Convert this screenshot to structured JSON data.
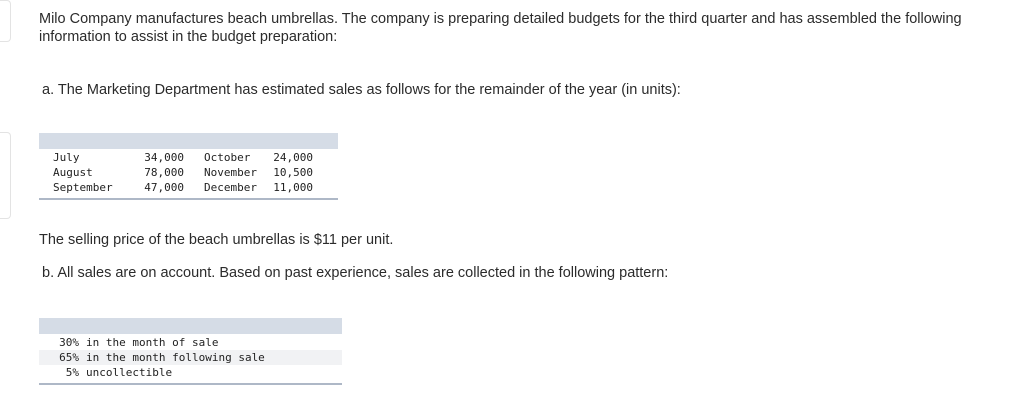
{
  "intro": "Milo Company manufactures beach umbrellas. The company is preparing detailed budgets for the third quarter and has assembled the following information to assist in the budget preparation:",
  "part_a": "a. The Marketing Department has estimated sales as follows for the remainder of the year (in units):",
  "sales_table": {
    "rows": [
      {
        "month1": "July",
        "value1": "34,000",
        "month2": "October",
        "value2": "24,000"
      },
      {
        "month1": "August",
        "value1": "78,000",
        "month2": "November",
        "value2": "10,500"
      },
      {
        "month1": "September",
        "value1": "47,000",
        "month2": "December",
        "value2": "11,000"
      }
    ]
  },
  "price_text": "The selling price of the beach umbrellas is $11 per unit.",
  "part_b": "b. All sales are on account. Based on past experience, sales are collected in the following pattern:",
  "collection_pattern": [
    {
      "percent": "30%",
      "description": "in the month of sale"
    },
    {
      "percent": "65%",
      "description": "in the month following sale"
    },
    {
      "percent": "5%",
      "description": "uncollectible"
    }
  ]
}
